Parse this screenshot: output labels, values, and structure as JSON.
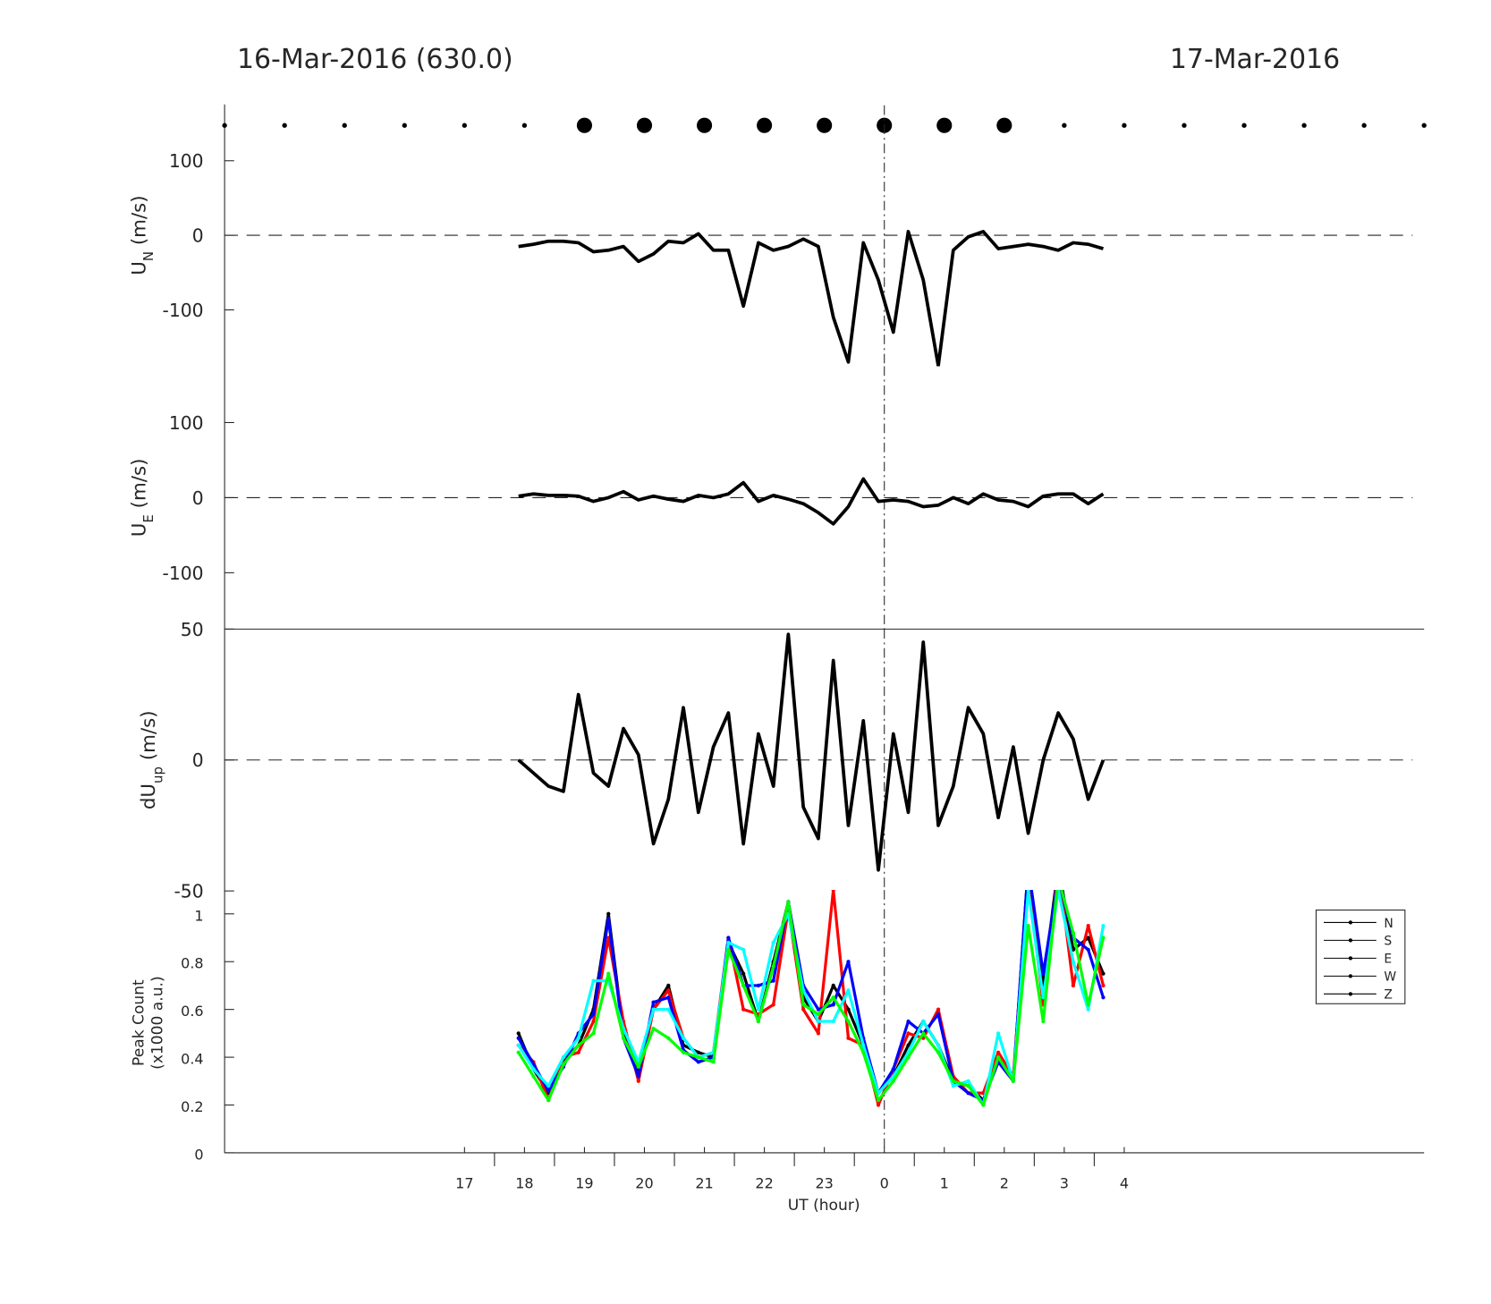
{
  "chart_data": [
    {
      "type": "line",
      "title_left": "16-Mar-2016 (630.0)",
      "title_right": "17-Mar-2016",
      "markers": {
        "x": [
          13,
          14,
          15,
          16,
          17,
          18,
          19,
          20,
          21,
          22,
          23,
          24,
          25,
          26,
          27,
          28,
          29,
          30,
          31,
          32,
          33
        ],
        "large": [
          false,
          false,
          false,
          false,
          false,
          false,
          true,
          true,
          true,
          true,
          true,
          true,
          true,
          true,
          false,
          false,
          false,
          false,
          false,
          false,
          false
        ]
      },
      "y_label": {
        "main": "U",
        "sub": "N",
        "unit": " (m/s)"
      },
      "ylim": [
        -175,
        175
      ],
      "yticks": [
        -100,
        0,
        100
      ],
      "hline": 0,
      "vline": 24,
      "x": [
        17.9,
        18.15,
        18.4,
        18.65,
        18.9,
        19.15,
        19.4,
        19.65,
        19.9,
        20.15,
        20.4,
        20.65,
        20.9,
        21.15,
        21.4,
        21.65,
        21.9,
        22.15,
        22.4,
        22.65,
        22.9,
        23.15,
        23.4,
        23.65,
        23.9,
        24.15,
        24.4,
        24.65,
        24.9,
        25.15,
        25.4,
        25.65,
        25.9,
        26.15,
        26.4,
        26.65,
        26.9,
        27.15,
        27.4,
        27.65
      ],
      "series": [
        {
          "color": "#000000",
          "values": [
            -15,
            -12,
            -8,
            -8,
            -10,
            -22,
            -20,
            -15,
            -35,
            -25,
            -8,
            -10,
            2,
            -20,
            -20,
            -95,
            -10,
            -20,
            -15,
            -5,
            -15,
            -110,
            -170,
            -10,
            -60,
            -130,
            5,
            -60,
            -175,
            -20,
            -2,
            5,
            -18,
            -15,
            -12,
            -15,
            -20,
            -10,
            -12,
            -18
          ]
        }
      ]
    },
    {
      "type": "line",
      "y_label": {
        "main": "U",
        "sub": "E",
        "unit": " (m/s)"
      },
      "ylim": [
        -175,
        175
      ],
      "yticks": [
        -100,
        0,
        100
      ],
      "hline": 0,
      "vline": 24,
      "x": [
        17.9,
        18.15,
        18.4,
        18.65,
        18.9,
        19.15,
        19.4,
        19.65,
        19.9,
        20.15,
        20.4,
        20.65,
        20.9,
        21.15,
        21.4,
        21.65,
        21.9,
        22.15,
        22.4,
        22.65,
        22.9,
        23.15,
        23.4,
        23.65,
        23.9,
        24.15,
        24.4,
        24.65,
        24.9,
        25.15,
        25.4,
        25.65,
        25.9,
        26.15,
        26.4,
        26.65,
        26.9,
        27.15,
        27.4,
        27.65
      ],
      "series": [
        {
          "color": "#000000",
          "values": [
            2,
            5,
            3,
            3,
            2,
            -5,
            0,
            8,
            -3,
            2,
            -2,
            -5,
            3,
            0,
            5,
            20,
            -5,
            3,
            -2,
            -8,
            -20,
            -35,
            -12,
            25,
            -5,
            -3,
            -5,
            -12,
            -10,
            0,
            -8,
            5,
            -3,
            -5,
            -12,
            2,
            5,
            5,
            -8,
            5
          ]
        }
      ]
    },
    {
      "type": "line",
      "y_label": {
        "main": "dU",
        "sub": "up",
        "unit": " (m/s)"
      },
      "ylim": [
        -50,
        50
      ],
      "yticks": [
        -50,
        0,
        50
      ],
      "hline": 0,
      "vline": 24,
      "x": [
        17.9,
        18.15,
        18.4,
        18.65,
        18.9,
        19.15,
        19.4,
        19.65,
        19.9,
        20.15,
        20.4,
        20.65,
        20.9,
        21.15,
        21.4,
        21.65,
        21.9,
        22.15,
        22.4,
        22.65,
        22.9,
        23.15,
        23.4,
        23.65,
        23.9,
        24.15,
        24.4,
        24.65,
        24.9,
        25.15,
        25.4,
        25.65,
        25.9,
        26.15,
        26.4,
        26.65,
        26.9,
        27.15,
        27.4,
        27.65
      ],
      "series": [
        {
          "color": "#000000",
          "values": [
            0,
            -5,
            -10,
            -12,
            25,
            -5,
            -10,
            12,
            2,
            -32,
            -15,
            20,
            -20,
            5,
            18,
            -32,
            10,
            -10,
            48,
            -18,
            -30,
            38,
            -25,
            15,
            -42,
            10,
            -20,
            45,
            -25,
            -10,
            20,
            10,
            -22,
            5,
            -28,
            0,
            18,
            8,
            -15,
            0
          ]
        }
      ]
    },
    {
      "type": "line",
      "y_label_lines": [
        "Peak Count",
        "(x1000 a.u.)"
      ],
      "ylim": [
        0,
        1.1
      ],
      "yticks": [
        0,
        0.2,
        0.4,
        0.6,
        0.8,
        1
      ],
      "vline": 24,
      "legend": "right",
      "xlim": [
        13,
        33
      ],
      "x_label": "UT (hour)",
      "xticks": [
        17,
        18,
        19,
        20,
        21,
        22,
        23,
        {
          "value": 24,
          "label": "0"
        },
        {
          "value": 25,
          "label": "1"
        },
        {
          "value": 26,
          "label": "2"
        },
        {
          "value": 27,
          "label": "3"
        },
        {
          "value": 28,
          "label": "4"
        }
      ],
      "xminor": [
        17.5,
        18.5,
        19.5,
        20.5,
        21.5,
        22.5,
        23.5,
        24.5,
        25.5,
        26.5,
        27.5
      ],
      "x": [
        17.9,
        18.15,
        18.4,
        18.65,
        18.9,
        19.15,
        19.4,
        19.65,
        19.9,
        20.15,
        20.4,
        20.65,
        20.9,
        21.15,
        21.4,
        21.65,
        21.9,
        22.15,
        22.4,
        22.65,
        22.9,
        23.15,
        23.4,
        23.65,
        23.9,
        24.15,
        24.4,
        24.65,
        24.9,
        25.15,
        25.4,
        25.65,
        25.9,
        26.15,
        26.4,
        26.65,
        26.9,
        27.15,
        27.4,
        27.65
      ],
      "series": [
        {
          "name": "N",
          "color": "#000000",
          "values": [
            0.5,
            0.35,
            0.25,
            0.38,
            0.45,
            0.6,
            1.0,
            0.5,
            0.35,
            0.6,
            0.7,
            0.45,
            0.42,
            0.4,
            0.88,
            0.75,
            0.55,
            0.8,
            1.05,
            0.65,
            0.55,
            0.7,
            0.6,
            0.45,
            0.25,
            0.32,
            0.45,
            0.55,
            0.45,
            0.3,
            0.28,
            0.22,
            0.4,
            0.3,
            1.2,
            0.7,
            1.2,
            0.85,
            0.9,
            0.75
          ]
        },
        {
          "name": "S",
          "color": "#ff0000",
          "values": [
            0.45,
            0.38,
            0.22,
            0.4,
            0.42,
            0.55,
            0.9,
            0.55,
            0.3,
            0.6,
            0.68,
            0.48,
            0.4,
            0.42,
            0.9,
            0.6,
            0.58,
            0.62,
            1.02,
            0.6,
            0.5,
            1.1,
            0.48,
            0.45,
            0.2,
            0.35,
            0.5,
            0.48,
            0.6,
            0.32,
            0.25,
            0.25,
            0.42,
            0.32,
            1.15,
            0.62,
            1.2,
            0.7,
            0.95,
            0.7
          ]
        },
        {
          "name": "E",
          "color": "#0000ff",
          "values": [
            0.48,
            0.37,
            0.26,
            0.36,
            0.5,
            0.58,
            0.98,
            0.48,
            0.32,
            0.63,
            0.65,
            0.43,
            0.38,
            0.4,
            0.9,
            0.7,
            0.7,
            0.72,
            1.05,
            0.7,
            0.6,
            0.62,
            0.8,
            0.48,
            0.25,
            0.35,
            0.55,
            0.5,
            0.58,
            0.3,
            0.25,
            0.22,
            0.38,
            0.3,
            1.2,
            0.75,
            1.15,
            0.9,
            0.85,
            0.65
          ]
        },
        {
          "name": "W",
          "color": "#00ffff",
          "values": [
            0.45,
            0.35,
            0.28,
            0.4,
            0.48,
            0.72,
            0.72,
            0.52,
            0.38,
            0.6,
            0.6,
            0.48,
            0.4,
            0.42,
            0.88,
            0.85,
            0.6,
            0.88,
            1.0,
            0.68,
            0.55,
            0.55,
            0.68,
            0.45,
            0.25,
            0.32,
            0.42,
            0.55,
            0.45,
            0.28,
            0.3,
            0.2,
            0.5,
            0.3,
            1.1,
            0.65,
            1.1,
            0.8,
            0.6,
            0.95
          ]
        },
        {
          "name": "Z",
          "color": "#00ff00",
          "values": [
            0.42,
            0.32,
            0.22,
            0.37,
            0.45,
            0.5,
            0.75,
            0.48,
            0.36,
            0.52,
            0.48,
            0.42,
            0.4,
            0.38,
            0.85,
            0.7,
            0.55,
            0.78,
            1.05,
            0.62,
            0.58,
            0.65,
            0.55,
            0.42,
            0.22,
            0.3,
            0.4,
            0.5,
            0.42,
            0.3,
            0.28,
            0.2,
            0.4,
            0.3,
            0.95,
            0.55,
            1.15,
            0.92,
            0.62,
            0.9
          ]
        }
      ]
    }
  ]
}
